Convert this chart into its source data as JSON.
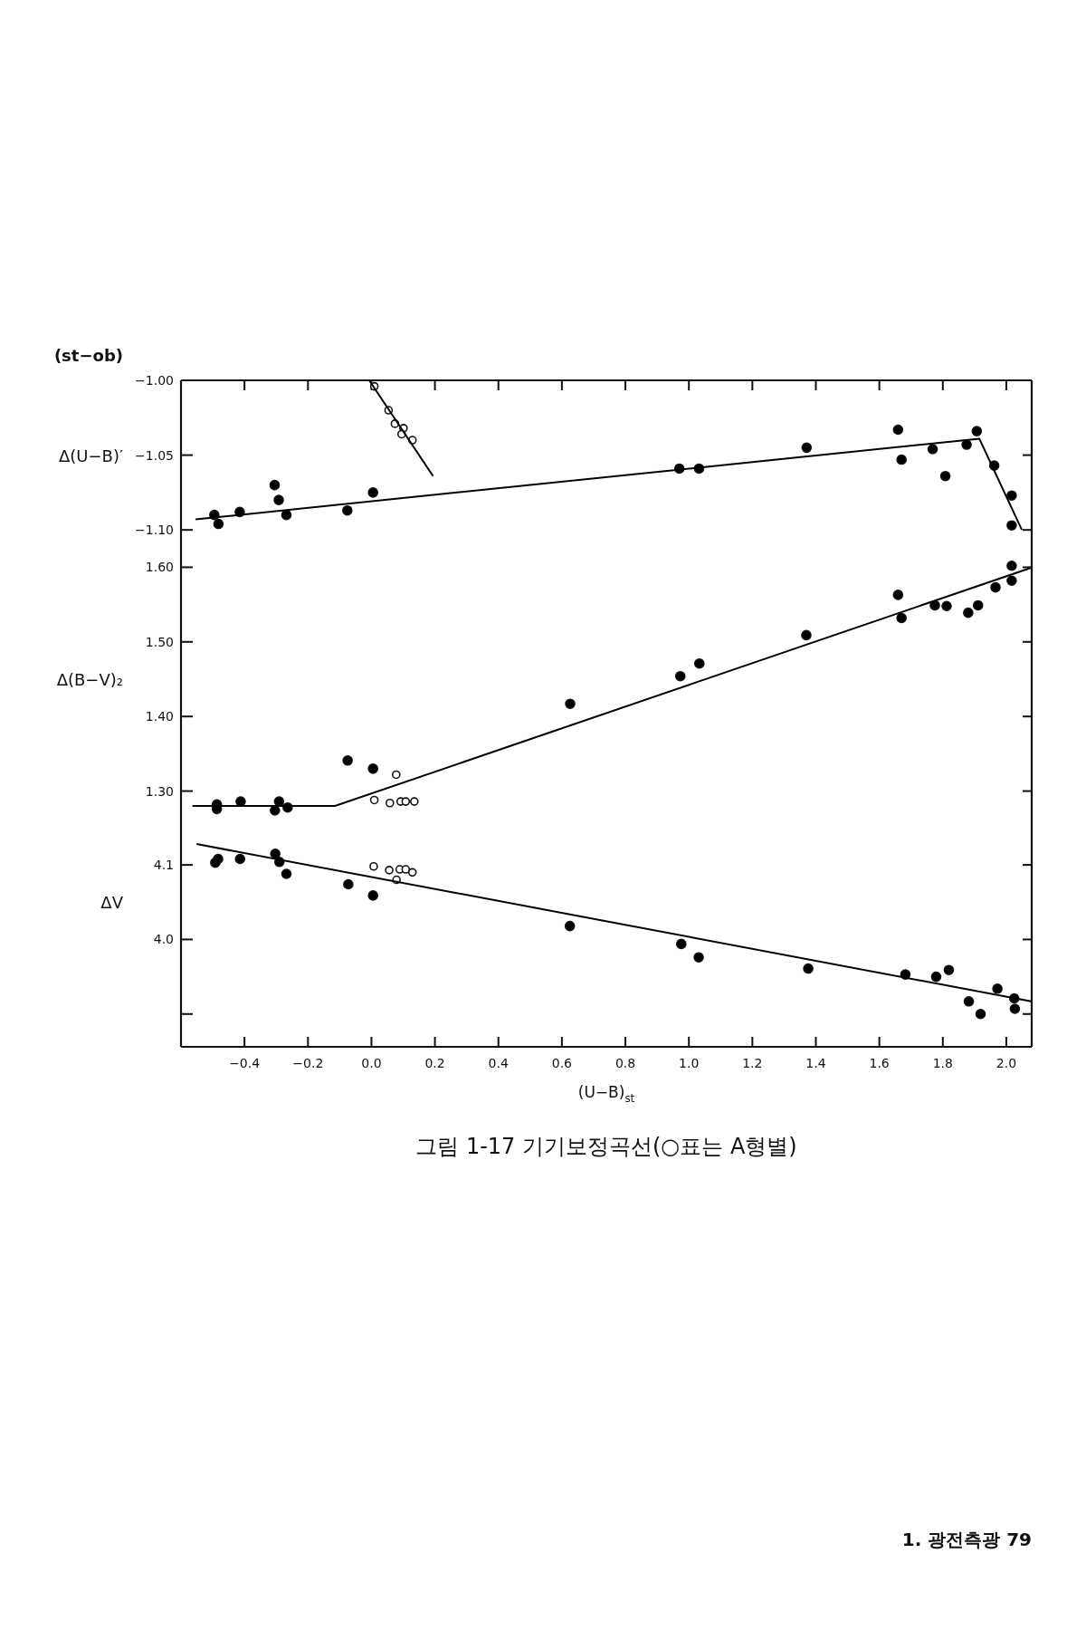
{
  "chart_data": [
    {
      "type": "scatter",
      "ylabel": "Δ(U−B)′",
      "tick_labels": "y",
      "xlim": [
        -0.6,
        2.08
      ],
      "xticks": [
        {
          "value": -0.4,
          "label": null
        },
        {
          "value": -0.2,
          "label": null
        },
        {
          "value": 0.0,
          "label": null
        },
        {
          "value": 0.2,
          "label": null
        },
        {
          "value": 0.4,
          "label": null
        },
        {
          "value": 0.6,
          "label": null
        },
        {
          "value": 0.8,
          "label": null
        },
        {
          "value": 1.0,
          "label": null
        },
        {
          "value": 1.2,
          "label": null
        },
        {
          "value": 1.4,
          "label": null
        },
        {
          "value": 1.6,
          "label": null
        },
        {
          "value": 1.8,
          "label": null
        },
        {
          "value": 2.0,
          "label": null
        }
      ],
      "ylim": [
        -1.112,
        -1.0
      ],
      "yticks": [
        {
          "value": -1.0,
          "label": "−1.00"
        },
        {
          "value": -1.05,
          "label": "−1.05"
        },
        {
          "value": -1.1,
          "label": "−1.10"
        }
      ],
      "series": [
        {
          "type": "scatter",
          "marker": "circle",
          "color": "#000000",
          "x": [
            1.907,
            1.875,
            1.808,
            1.768,
            1.659,
            1.67,
            1.371,
            1.962,
            2.017,
            2.017,
            1.032,
            0.97,
            0.005,
            -0.076,
            -0.268,
            -0.292,
            -0.305,
            -0.415,
            -0.495,
            -0.482
          ],
          "values": [
            -1.034,
            -1.043,
            -1.064,
            -1.046,
            -1.033,
            -1.053,
            -1.045,
            -1.057,
            -1.077,
            -1.097,
            -1.059,
            -1.059,
            -1.075,
            -1.087,
            -1.09,
            -1.08,
            -1.07,
            -1.088,
            -1.09,
            -1.096
          ]
        },
        {
          "type": "scatter",
          "marker": "circle",
          "color": "#ffffff",
          "x": [
            0.009,
            0.054,
            0.074,
            0.101,
            0.095,
            0.129
          ],
          "values": [
            -1.004,
            -1.02,
            -1.029,
            -1.032,
            -1.036,
            -1.04
          ]
        },
        {
          "type": "line",
          "marker": "none",
          "line_style": "solid",
          "color": "#000000",
          "x": [
            -0.554,
            1.915,
            2.049
          ],
          "values": [
            -1.093,
            -1.039,
            -1.1
          ]
        },
        {
          "type": "line",
          "marker": "none",
          "line_style": "solid",
          "color": "#000000",
          "x": [
            -0.007,
            0.194
          ],
          "values": [
            -1.0,
            -1.064
          ]
        }
      ],
      "annotations": [
        "(st−ob)"
      ]
    },
    {
      "type": "scatter",
      "ylabel": "Δ(B−V)₂",
      "tick_labels": "y",
      "xlim": [
        -0.6,
        2.08
      ],
      "ylim": [
        1.257,
        1.626
      ],
      "yticks": [
        {
          "value": 1.6,
          "label": "1.60"
        },
        {
          "value": 1.5,
          "label": "1.50"
        },
        {
          "value": 1.4,
          "label": "1.40"
        },
        {
          "value": 1.3,
          "label": "1.30"
        }
      ],
      "series": [
        {
          "type": "scatter",
          "marker": "circle",
          "color": "#000000",
          "x": [
            2.017,
            2.017,
            1.966,
            1.911,
            1.88,
            1.812,
            1.775,
            1.659,
            1.67,
            1.37,
            1.033,
            0.973,
            0.626,
            -0.075,
            0.005,
            -0.264,
            -0.291,
            -0.304,
            -0.412,
            -0.487,
            -0.487
          ],
          "values": [
            1.602,
            1.582,
            1.573,
            1.549,
            1.539,
            1.548,
            1.549,
            1.563,
            1.532,
            1.509,
            1.471,
            1.454,
            1.417,
            1.341,
            1.33,
            1.278,
            1.286,
            1.274,
            1.286,
            1.282,
            1.276
          ]
        },
        {
          "type": "scatter",
          "marker": "circle",
          "color": "#ffffff",
          "x": [
            0.078,
            0.009,
            0.058,
            0.092,
            0.108,
            0.135
          ],
          "values": [
            1.322,
            1.288,
            1.284,
            1.286,
            1.286,
            1.286
          ]
        },
        {
          "type": "line",
          "marker": "none",
          "line_style": "solid",
          "color": "#000000",
          "x": [
            -0.564,
            -0.115,
            2.076
          ],
          "values": [
            1.28,
            1.28,
            1.599
          ]
        }
      ]
    },
    {
      "type": "scatter",
      "ylabel": "ΔV",
      "xlabel": "(U−B)$_{st}$",
      "xlim": [
        -0.6,
        2.08
      ],
      "xticks": [
        {
          "value": -0.4,
          "label": "−0.4"
        },
        {
          "value": -0.2,
          "label": "−0.2"
        },
        {
          "value": 0.0,
          "label": "0.0"
        },
        {
          "value": 0.2,
          "label": "0.2"
        },
        {
          "value": 0.4,
          "label": "0.4"
        },
        {
          "value": 0.6,
          "label": "0.6"
        },
        {
          "value": 0.8,
          "label": "0.8"
        },
        {
          "value": 1.0,
          "label": "1.0"
        },
        {
          "value": 1.2,
          "label": "1.2"
        },
        {
          "value": 1.4,
          "label": "1.4"
        },
        {
          "value": 1.6,
          "label": "1.6"
        },
        {
          "value": 1.8,
          "label": "1.8"
        },
        {
          "value": 2.0,
          "label": "2.0"
        }
      ],
      "ylim": [
        3.856,
        4.156
      ],
      "yticks": [
        {
          "value": 4.1,
          "label": "4.1"
        },
        {
          "value": 4.0,
          "label": "4.0"
        },
        {
          "value": 3.9,
          "label": null
        }
      ],
      "series": [
        {
          "type": "scatter",
          "marker": "circle",
          "color": "#000000",
          "x": [
            2.025,
            2.027,
            1.972,
            1.919,
            1.882,
            1.819,
            1.779,
            1.682,
            1.376,
            1.031,
            0.976,
            0.625,
            -0.073,
            0.005,
            -0.268,
            -0.29,
            -0.303,
            -0.414,
            -0.483,
            -0.492
          ],
          "values": [
            3.921,
            3.907,
            3.934,
            3.9,
            3.917,
            3.959,
            3.95,
            3.953,
            3.961,
            3.976,
            3.994,
            4.018,
            4.074,
            4.059,
            4.088,
            4.104,
            4.115,
            4.108,
            4.108,
            4.103
          ]
        },
        {
          "type": "scatter",
          "marker": "circle",
          "color": "#ffffff",
          "x": [
            0.007,
            0.056,
            0.079,
            0.089,
            0.108,
            0.129
          ],
          "values": [
            4.098,
            4.093,
            4.08,
            4.094,
            4.094,
            4.09
          ]
        },
        {
          "type": "line",
          "marker": "none",
          "line_style": "solid",
          "color": "#000000",
          "x": [
            -0.551,
            2.078
          ],
          "values": [
            4.128,
            3.917
          ]
        }
      ],
      "annotations": [
        "그림 1-17  기기보정곡선(○표는 A형별)",
        "1. 광전측광  79"
      ]
    }
  ]
}
